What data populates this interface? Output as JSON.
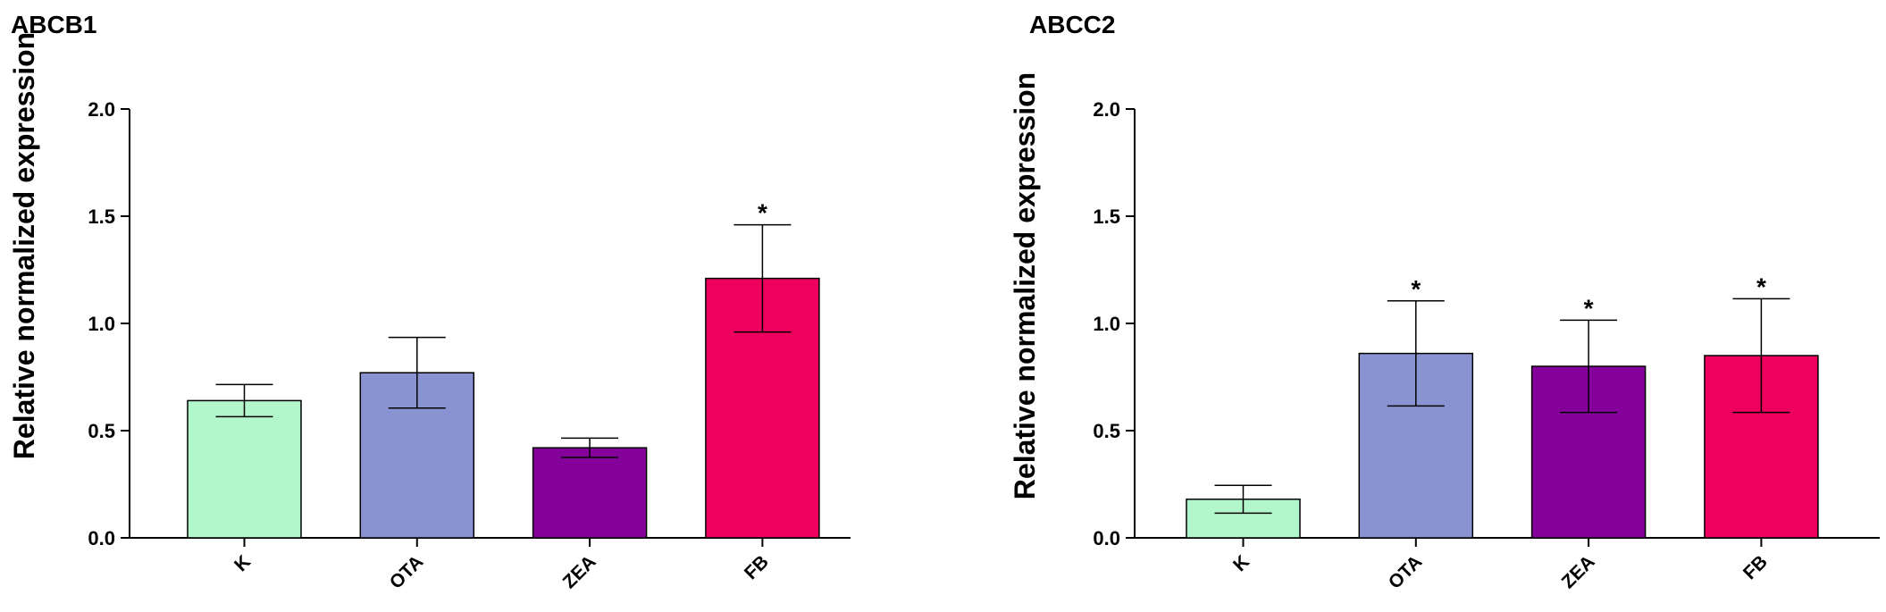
{
  "chart_data": [
    {
      "type": "bar",
      "title": "ABCB1",
      "xlabel": "",
      "ylabel": "Relative normalized expression",
      "categories": [
        "K",
        "OTA",
        "ZEA",
        "FB"
      ],
      "values": [
        0.64,
        0.77,
        0.42,
        1.21
      ],
      "errors": [
        0.075,
        0.165,
        0.045,
        0.25
      ],
      "significance": [
        "",
        "",
        "",
        "*"
      ],
      "colors": [
        "#b2f7cb",
        "#8a93d2",
        "#85009b",
        "#ee005e"
      ],
      "ylim": [
        0,
        2.0
      ],
      "yticks": [
        "0.0",
        "0.5",
        "1.0",
        "1.5",
        "2.0"
      ],
      "grid": false
    },
    {
      "type": "bar",
      "title": "ABCC2",
      "xlabel": "",
      "ylabel": "Relative normalized expression",
      "categories": [
        "K",
        "OTA",
        "ZEA",
        "FB"
      ],
      "values": [
        0.18,
        0.86,
        0.8,
        0.85
      ],
      "errors": [
        0.065,
        0.245,
        0.215,
        0.265
      ],
      "significance": [
        "",
        "*",
        "*",
        "*"
      ],
      "colors": [
        "#b2f7cb",
        "#8a93d2",
        "#85009b",
        "#ee005e"
      ],
      "ylim": [
        0,
        2.0
      ],
      "yticks": [
        "0.0",
        "0.5",
        "1.0",
        "1.5",
        "2.0"
      ],
      "grid": false
    }
  ]
}
